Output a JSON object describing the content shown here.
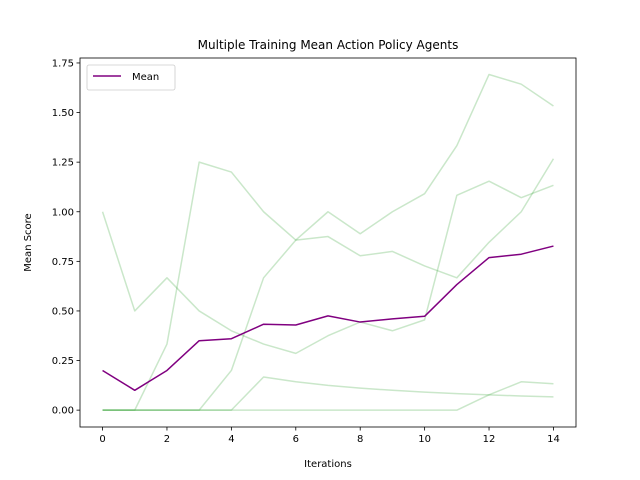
{
  "chart_data": {
    "type": "line",
    "title": "Multiple Training Mean Action Policy Agents",
    "xlabel": "Iterations",
    "ylabel": "Mean Score",
    "xlim": [
      -0.7,
      14.7
    ],
    "ylim": [
      -0.085,
      1.775
    ],
    "xticks": [
      0,
      2,
      4,
      6,
      8,
      10,
      12,
      14
    ],
    "yticks": [
      0.0,
      0.25,
      0.5,
      0.75,
      1.0,
      1.25,
      1.5,
      1.75
    ],
    "ytick_labels": [
      "0.00",
      "0.25",
      "0.50",
      "0.75",
      "1.00",
      "1.25",
      "1.50",
      "1.75"
    ],
    "x": [
      0,
      1,
      2,
      3,
      4,
      5,
      6,
      7,
      8,
      9,
      10,
      11,
      12,
      13,
      14
    ],
    "legend": {
      "position": "upper-left",
      "entries": [
        "Mean"
      ]
    },
    "grid": false,
    "colors": {
      "mean": "#800080",
      "agents": "#2ca02c",
      "agent_opacity": 0.25
    },
    "agents": [
      {
        "values": [
          1.0,
          0.5,
          0.667,
          0.5,
          0.4,
          0.333,
          0.286,
          0.375,
          0.444,
          0.4,
          0.455,
          1.083,
          1.154,
          1.071,
          1.133
        ]
      },
      {
        "values": [
          0.0,
          0.0,
          0.333,
          1.25,
          1.2,
          1.0,
          0.857,
          0.875,
          0.778,
          0.8,
          0.727,
          0.667,
          0.846,
          1.0,
          1.267
        ]
      },
      {
        "values": [
          0.0,
          0.0,
          0.0,
          0.0,
          0.2,
          0.667,
          0.857,
          1.0,
          0.889,
          1.0,
          1.091,
          1.333,
          1.692,
          1.643,
          1.533
        ]
      },
      {
        "values": [
          0.0,
          0.0,
          0.0,
          0.0,
          0.0,
          0.167,
          0.143,
          0.125,
          0.111,
          0.1,
          0.091,
          0.083,
          0.077,
          0.071,
          0.067
        ]
      },
      {
        "values": [
          0.0,
          0.0,
          0.0,
          0.0,
          0.0,
          0.0,
          0.0,
          0.0,
          0.0,
          0.0,
          0.0,
          0.0,
          0.077,
          0.143,
          0.133
        ]
      }
    ],
    "series": [
      {
        "name": "Mean",
        "values": [
          0.2,
          0.1,
          0.2,
          0.35,
          0.36,
          0.433,
          0.429,
          0.475,
          0.444,
          0.46,
          0.473,
          0.633,
          0.769,
          0.786,
          0.827
        ]
      }
    ]
  }
}
